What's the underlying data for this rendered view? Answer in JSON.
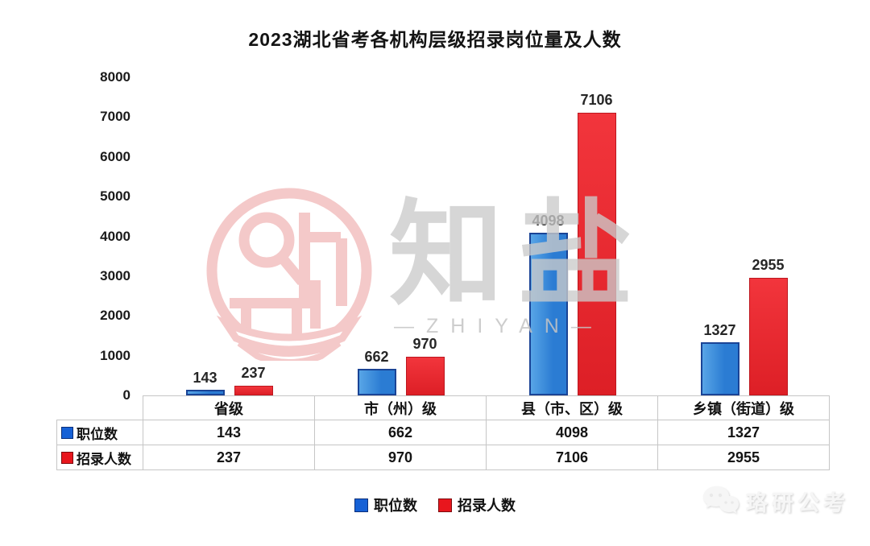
{
  "title": "2023湖北省考各机构层级招录岗位量及人数",
  "chart_data": {
    "type": "bar",
    "title": "2023湖北省考各机构层级招录岗位量及人数",
    "categories": [
      "省级",
      "市（州）级",
      "县（市、区）级",
      "乡镇（街道）级"
    ],
    "series": [
      {
        "name": "职位数",
        "values": [
          143,
          662,
          4098,
          1327
        ],
        "fill": "#2b7cd3",
        "border": "#1a4496",
        "swatch": "#1661d6",
        "swatch_border": "#0a2f7a"
      },
      {
        "name": "招录人数",
        "values": [
          237,
          970,
          7106,
          2955
        ],
        "fill": "#e8252b",
        "border": "#bd171f",
        "swatch": "#e8161d",
        "swatch_border": "#7d0a0e"
      }
    ],
    "ylim": [
      0,
      8000
    ],
    "ytick_step": 1000,
    "grid": false,
    "legend_position": "bottom",
    "show_data_table": true,
    "value_labels": true
  },
  "watermark": {
    "brand": "知盐",
    "brand_sub": "—ZHIYAN—"
  },
  "footer": {
    "brand": "珞研公考"
  }
}
